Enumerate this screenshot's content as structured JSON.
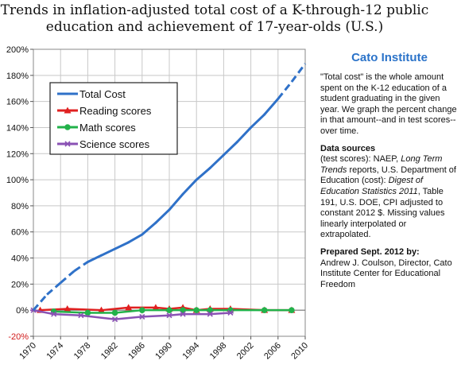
{
  "chart_data": {
    "type": "line",
    "title_line1": "Trends in inflation-adjusted total cost of a K-through-12 public",
    "title_line2": "education and achievement of 17-year-olds (U.S.)",
    "y_ticks": [
      "200%",
      "180%",
      "160%",
      "140%",
      "120%",
      "100%",
      "80%",
      "60%",
      "40%",
      "20%",
      "0%",
      "-20%"
    ],
    "x_ticks": [
      "1970",
      "1974",
      "1978",
      "1982",
      "1986",
      "1990",
      "1994",
      "1998",
      "2002",
      "2006",
      "2010"
    ],
    "ylim": [
      -20,
      200
    ],
    "xlim": [
      1970,
      2010
    ],
    "grid": true,
    "legend_placement": "top-left",
    "series": [
      {
        "name": "Total Cost",
        "color": "#2f71c8",
        "marker": "none",
        "points": [
          [
            1970,
            0
          ],
          [
            1972,
            12
          ],
          [
            1974,
            21
          ],
          [
            1976,
            30
          ],
          [
            1978,
            37
          ],
          [
            1980,
            42
          ],
          [
            1982,
            47
          ],
          [
            1984,
            52
          ],
          [
            1986,
            58
          ],
          [
            1988,
            67
          ],
          [
            1990,
            77
          ],
          [
            1992,
            89
          ],
          [
            1994,
            100
          ],
          [
            1996,
            109
          ],
          [
            1998,
            119
          ],
          [
            2000,
            129
          ],
          [
            2002,
            140
          ],
          [
            2004,
            150
          ],
          [
            2006,
            162
          ],
          [
            2008,
            175
          ],
          [
            2010,
            189
          ]
        ],
        "dashed_ranges": [
          [
            1970,
            1978
          ],
          [
            2006,
            2010
          ]
        ]
      },
      {
        "name": "Reading scores",
        "color": "#e02020",
        "marker": "triangle",
        "points": [
          [
            1971,
            0
          ],
          [
            1975,
            1
          ],
          [
            1980,
            0
          ],
          [
            1984,
            2
          ],
          [
            1988,
            2
          ],
          [
            1990,
            1
          ],
          [
            1992,
            2
          ],
          [
            1994,
            0
          ],
          [
            1996,
            1
          ],
          [
            1999,
            1
          ],
          [
            2004,
            0
          ],
          [
            2008,
            0
          ]
        ]
      },
      {
        "name": "Math scores",
        "color": "#22b24a",
        "marker": "circle",
        "points": [
          [
            1973,
            -1
          ],
          [
            1978,
            -2
          ],
          [
            1982,
            -2
          ],
          [
            1986,
            0
          ],
          [
            1990,
            0
          ],
          [
            1992,
            0
          ],
          [
            1994,
            0
          ],
          [
            1996,
            0
          ],
          [
            1999,
            0
          ],
          [
            2004,
            0
          ],
          [
            2008,
            0
          ]
        ]
      },
      {
        "name": "Science scores",
        "color": "#8a52b4",
        "marker": "star",
        "points": [
          [
            1970,
            0
          ],
          [
            1973,
            -3
          ],
          [
            1977,
            -4
          ],
          [
            1982,
            -7
          ],
          [
            1986,
            -5
          ],
          [
            1990,
            -4
          ],
          [
            1992,
            -3
          ],
          [
            1996,
            -3
          ],
          [
            1999,
            -2
          ]
        ]
      }
    ]
  },
  "sidebar": {
    "brand": "Cato Institute",
    "description": "\"Total cost\" is the whole amount spent on the K-12 education of a student graduating in the given year. We graph the percent change in that amount--and in test scores--over time.",
    "data_sources_heading": "Data sources",
    "data_sources_1": "(test scores): NAEP, ",
    "data_sources_1_italic": "Long Term Trends",
    "data_sources_2": " reports, U.S. Department of Education (cost): ",
    "data_sources_2_italic": "Digest of Education Statistics 2011",
    "data_sources_3": ", Table 191, U.S. DOE, CPI adjusted to constant 2012 $.  Missing values linearly interpolated or extrapolated.",
    "prepared_heading": "Prepared Sept. 2012 by:",
    "prepared_body": "Andrew J. Coulson, Director, Cato Institute Center for Educational Freedom"
  }
}
